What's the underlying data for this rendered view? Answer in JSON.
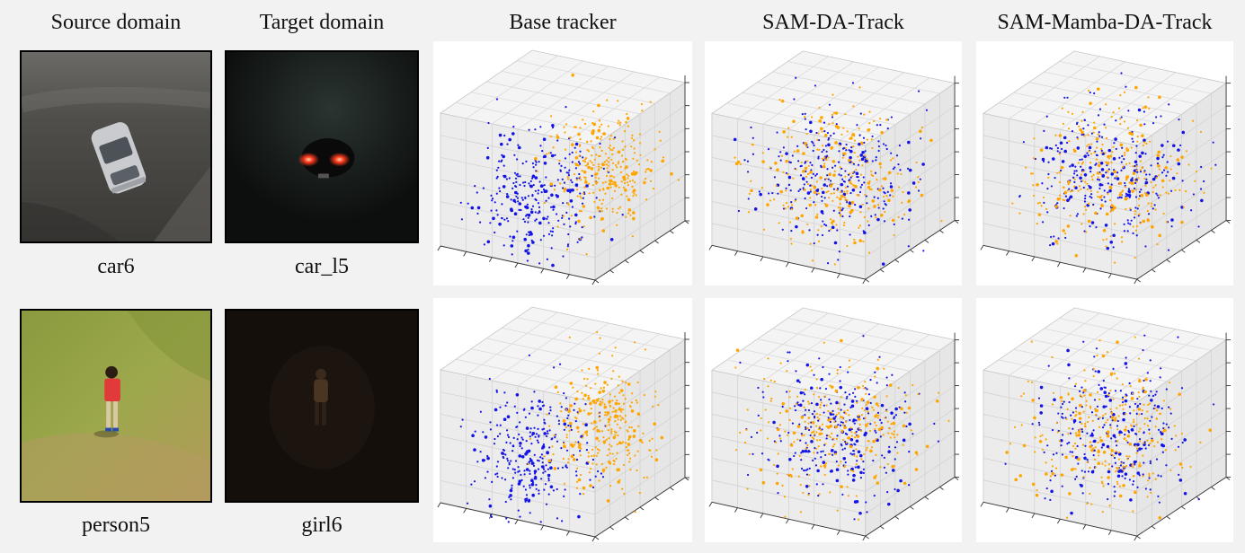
{
  "headers": [
    "Source domain",
    "Target domain",
    "Base tracker",
    "SAM-DA-Track",
    "SAM-Mamba-DA-Track"
  ],
  "rows": [
    {
      "source": {
        "caption": "car6",
        "scene": "aerial photo of a silver car on a dark paved road"
      },
      "target": {
        "caption": "car_l5",
        "scene": "night photo with red car tail lights"
      }
    },
    {
      "source": {
        "caption": "person5",
        "scene": "aerial photo of a person in a red shirt on a grass field"
      },
      "target": {
        "caption": "girl6",
        "scene": "night photo of a dimly lit person"
      }
    }
  ],
  "scatter_colors": {
    "source": "#1414e6",
    "target": "#ffa500"
  },
  "chart_data": [
    {
      "type": "scatter",
      "projection": "3d",
      "method": "Base tracker",
      "row": 1,
      "series": [
        {
          "color": "#1414e6",
          "spread": "compact",
          "offset": "left"
        },
        {
          "color": "#ffa500",
          "spread": "compact",
          "offset": "right"
        }
      ],
      "grid": true
    },
    {
      "type": "scatter",
      "projection": "3d",
      "method": "SAM-DA-Track",
      "row": 1,
      "series": [
        {
          "color": "#1414e6",
          "spread": "wide",
          "offset": "center"
        },
        {
          "color": "#ffa500",
          "spread": "wide",
          "offset": "center"
        }
      ],
      "grid": true
    },
    {
      "type": "scatter",
      "projection": "3d",
      "method": "SAM-Mamba-DA-Track",
      "row": 1,
      "series": [
        {
          "color": "#1414e6",
          "spread": "wide",
          "offset": "center"
        },
        {
          "color": "#ffa500",
          "spread": "wide",
          "offset": "center"
        }
      ],
      "grid": true
    },
    {
      "type": "scatter",
      "projection": "3d",
      "method": "Base tracker",
      "row": 2,
      "series": [
        {
          "color": "#1414e6",
          "spread": "compact",
          "offset": "left"
        },
        {
          "color": "#ffa500",
          "spread": "compact",
          "offset": "right"
        }
      ],
      "grid": true
    },
    {
      "type": "scatter",
      "projection": "3d",
      "method": "SAM-DA-Track",
      "row": 2,
      "series": [
        {
          "color": "#1414e6",
          "spread": "wide",
          "offset": "center"
        },
        {
          "color": "#ffa500",
          "spread": "wide",
          "offset": "center"
        }
      ],
      "grid": true
    },
    {
      "type": "scatter",
      "projection": "3d",
      "method": "SAM-Mamba-DA-Track",
      "row": 2,
      "series": [
        {
          "color": "#1414e6",
          "spread": "wide",
          "offset": "center"
        },
        {
          "color": "#ffa500",
          "spread": "wide",
          "offset": "center"
        }
      ],
      "grid": true
    }
  ]
}
